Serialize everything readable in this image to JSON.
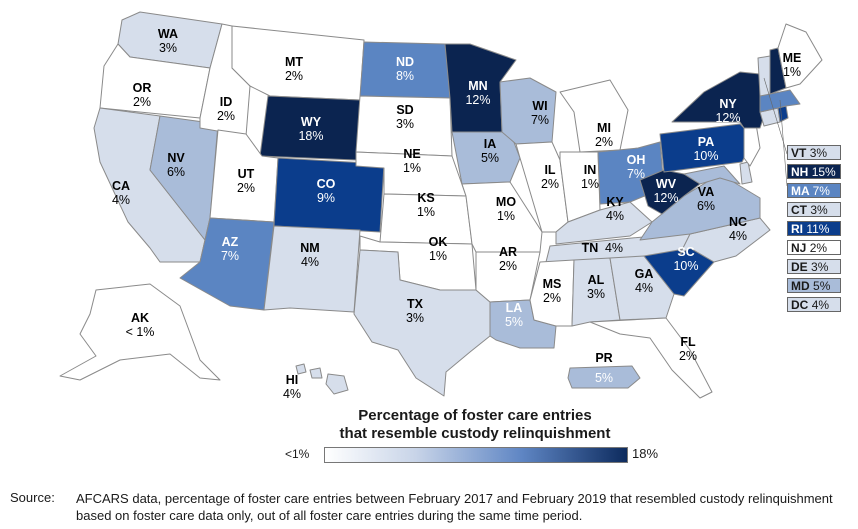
{
  "legend": {
    "title_line1": "Percentage of foster care entries",
    "title_line2": "that resemble custody relinquishment",
    "min_label": "<1%",
    "max_label": "18%"
  },
  "source": {
    "label": "Source:",
    "text": "AFCARS data, percentage of foster care entries between February 2017 and February 2019 that resembled custody relinquishment based on foster care data only, out of all foster care entries during the same time period."
  },
  "colors": {
    "white": "#ffffff",
    "light": "#d6deeb",
    "medlight": "#a9bcd9",
    "medium": "#5b85c2",
    "dark": "#2a5ba6",
    "darker": "#0b3d8c",
    "darkest": "#0b2450"
  },
  "states": {
    "WA": {
      "label": "WA",
      "value": "3%"
    },
    "OR": {
      "label": "OR",
      "value": "2%"
    },
    "CA": {
      "label": "CA",
      "value": "4%"
    },
    "NV": {
      "label": "NV",
      "value": "6%"
    },
    "ID": {
      "label": "ID",
      "value": "2%"
    },
    "MT": {
      "label": "MT",
      "value": "2%"
    },
    "WY": {
      "label": "WY",
      "value": "18%"
    },
    "UT": {
      "label": "UT",
      "value": "2%"
    },
    "AZ": {
      "label": "AZ",
      "value": "7%"
    },
    "CO": {
      "label": "CO",
      "value": "9%"
    },
    "NM": {
      "label": "NM",
      "value": "4%"
    },
    "ND": {
      "label": "ND",
      "value": "8%"
    },
    "SD": {
      "label": "SD",
      "value": "3%"
    },
    "NE": {
      "label": "NE",
      "value": "1%"
    },
    "KS": {
      "label": "KS",
      "value": "1%"
    },
    "OK": {
      "label": "OK",
      "value": "1%"
    },
    "TX": {
      "label": "TX",
      "value": "3%"
    },
    "MN": {
      "label": "MN",
      "value": "12%"
    },
    "IA": {
      "label": "IA",
      "value": "5%"
    },
    "MO": {
      "label": "MO",
      "value": "1%"
    },
    "AR": {
      "label": "AR",
      "value": "2%"
    },
    "LA": {
      "label": "LA",
      "value": "5%"
    },
    "WI": {
      "label": "WI",
      "value": "7%"
    },
    "IL": {
      "label": "IL",
      "value": "2%"
    },
    "MI": {
      "label": "MI",
      "value": "2%"
    },
    "IN": {
      "label": "IN",
      "value": "1%"
    },
    "OH": {
      "label": "OH",
      "value": "7%"
    },
    "KY": {
      "label": "KY",
      "value": "4%"
    },
    "TN": {
      "label": "TN",
      "value": "4%"
    },
    "MS": {
      "label": "MS",
      "value": "2%"
    },
    "AL": {
      "label": "AL",
      "value": "3%"
    },
    "GA": {
      "label": "GA",
      "value": "4%"
    },
    "FL": {
      "label": "FL",
      "value": "2%"
    },
    "SC": {
      "label": "SC",
      "value": "10%"
    },
    "NC": {
      "label": "NC",
      "value": "4%"
    },
    "VA": {
      "label": "VA",
      "value": "6%"
    },
    "WV": {
      "label": "WV",
      "value": "12%"
    },
    "PA": {
      "label": "PA",
      "value": "10%"
    },
    "NY": {
      "label": "NY",
      "value": "12%"
    },
    "ME": {
      "label": "ME",
      "value": "1%"
    },
    "AK": {
      "label": "AK",
      "value": "< 1%"
    },
    "HI": {
      "label": "HI",
      "value": "4%"
    },
    "PR": {
      "label": "PR",
      "value": "5%"
    }
  },
  "side_boxes": [
    {
      "label": "VT",
      "value": "3%",
      "color": "#d6deeb"
    },
    {
      "label": "NH",
      "value": "15%",
      "color": "#0b2450"
    },
    {
      "label": "MA",
      "value": "7%",
      "color": "#5b85c2"
    },
    {
      "label": "CT",
      "value": "3%",
      "color": "#d6deeb"
    },
    {
      "label": "RI",
      "value": "11%",
      "color": "#0b3d8c"
    },
    {
      "label": "NJ",
      "value": "2%",
      "color": "#ffffff"
    },
    {
      "label": "DE",
      "value": "3%",
      "color": "#d6deeb"
    },
    {
      "label": "MD",
      "value": "5%",
      "color": "#a9bcd9"
    },
    {
      "label": "DC",
      "value": "4%",
      "color": "#d6deeb"
    }
  ]
}
